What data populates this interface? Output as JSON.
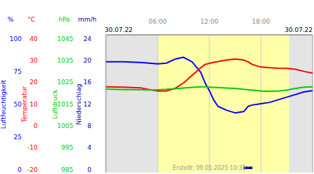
{
  "header": {
    "date_start": "30.07.22",
    "date_end": "30.07.22"
  },
  "footer": "Erstellt: 09.05.2025 10:35",
  "daylight": {
    "start": 6,
    "end": 21.25
  },
  "chart_data": [
    {
      "type": "line",
      "y_unit": "%",
      "ylabel": "Luftfeuchtigkeit",
      "color": "#0000ff",
      "xlim": [
        0,
        24
      ],
      "xticks": [
        {
          "value": 6,
          "label": "06:00"
        },
        {
          "value": 12,
          "label": "12:00"
        },
        {
          "value": 18,
          "label": "18:00"
        }
      ],
      "grid": true,
      "ylim": [
        0,
        100
      ],
      "yticks": [
        0,
        25,
        50,
        75,
        100
      ],
      "x": [
        0,
        2,
        4,
        5,
        6,
        7,
        8,
        9,
        10,
        11,
        11.5,
        12,
        12.5,
        13,
        14,
        15,
        16,
        16.5,
        17,
        18,
        19,
        20,
        21,
        22,
        23,
        24
      ],
      "series": [
        {
          "name": "Luftfeuchtigkeit",
          "color": "#0000ff",
          "values": [
            82,
            82,
            81.5,
            81,
            80.5,
            81,
            84,
            85.5,
            82,
            74,
            66,
            60,
            53,
            48,
            45,
            43,
            44,
            48,
            49,
            50,
            51,
            53,
            55,
            57,
            59,
            60
          ]
        }
      ]
    },
    {
      "type": "line",
      "y_unit": "°C",
      "ylabel": "Temperatur",
      "color": "#ff0000",
      "ylim": [
        -20,
        40
      ],
      "yticks": [
        -20,
        -10,
        0,
        10,
        20,
        30,
        40
      ],
      "x": [
        0,
        2,
        4,
        5,
        6,
        7,
        8,
        9,
        10,
        11,
        11.5,
        12,
        12.5,
        13,
        14,
        15,
        16,
        16.5,
        17,
        18,
        19,
        20,
        21,
        22,
        23,
        24
      ],
      "series": [
        {
          "name": "Temperatur",
          "color": "#ff0000",
          "values": [
            17.7,
            17.6,
            17.3,
            16.5,
            15.8,
            15.8,
            17,
            19.5,
            23,
            26.5,
            28,
            28.5,
            29,
            29.3,
            30,
            30.5,
            30,
            29.2,
            28,
            26.8,
            26.5,
            26.3,
            26.2,
            25.8,
            24.8,
            24
          ]
        }
      ]
    },
    {
      "type": "line",
      "y_unit": "hPa",
      "ylabel": "Luftdruck",
      "color": "#00cc00",
      "ylim": [
        985,
        1045
      ],
      "yticks": [
        985,
        995,
        1005,
        1015,
        1025,
        1035,
        1045
      ],
      "x": [
        0,
        2,
        4,
        5,
        6,
        7,
        8,
        9,
        10,
        11,
        11.5,
        12,
        12.5,
        13,
        14,
        15,
        16,
        16.5,
        17,
        18,
        19,
        20,
        21,
        22,
        23,
        24
      ],
      "series": [
        {
          "name": "Luftdruck",
          "color": "#00cc00",
          "values": [
            1021.7,
            1021.5,
            1021.4,
            1021.3,
            1021.4,
            1021.6,
            1021.9,
            1022.2,
            1022.5,
            1022.7,
            1022.7,
            1022.6,
            1022.5,
            1022.4,
            1022.2,
            1022,
            1021.6,
            1021.4,
            1021.2,
            1020.8,
            1020.7,
            1020.8,
            1021.2,
            1022,
            1022.6,
            1022.7
          ]
        }
      ]
    },
    {
      "type": "bar",
      "y_unit": "mm/h",
      "ylabel": "Niederschlag",
      "color": "#0000aa",
      "ylim": [
        0,
        24
      ],
      "yticks": [
        0,
        4,
        8,
        12,
        16,
        20,
        24
      ],
      "x": [
        16,
        16.5
      ],
      "series": [
        {
          "name": "Niederschlag",
          "color": "#0000aa",
          "values": [
            0.2,
            0.2
          ]
        }
      ]
    }
  ]
}
